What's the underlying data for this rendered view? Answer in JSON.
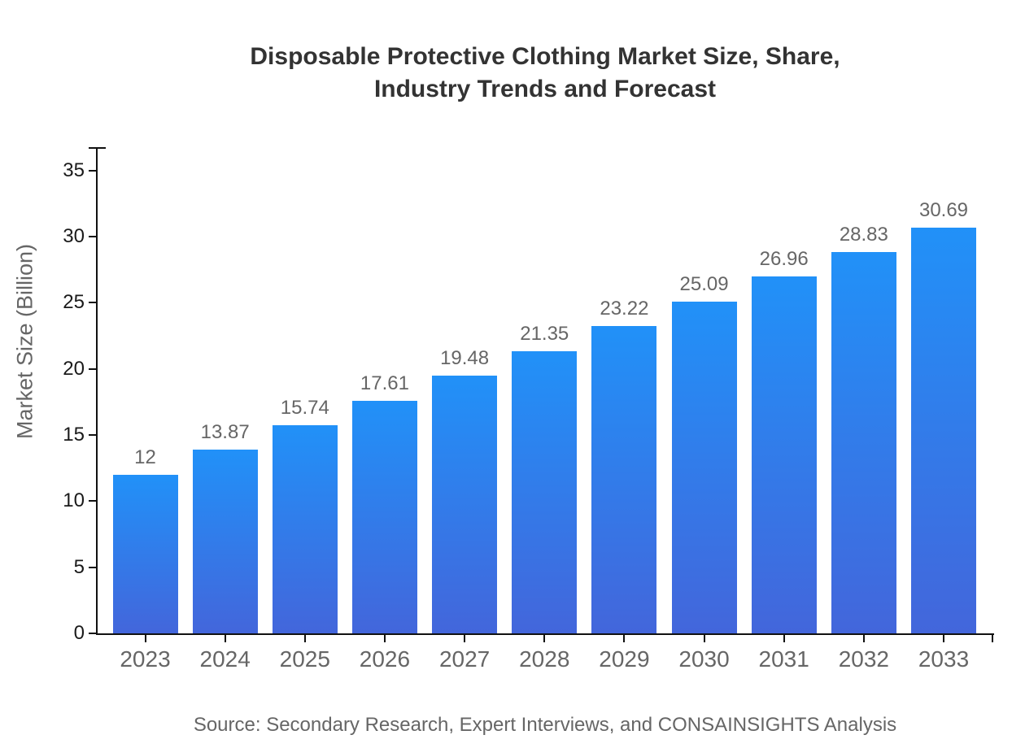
{
  "chart_data": {
    "type": "bar",
    "title": "Disposable Protective Clothing Market Size, Share, Industry Trends and Forecast",
    "title_lines": [
      "Disposable Protective Clothing Market Size, Share,",
      "Industry Trends and Forecast"
    ],
    "xlabel": "",
    "ylabel": "Market Size (Billion)",
    "categories": [
      "2023",
      "2024",
      "2025",
      "2026",
      "2027",
      "2028",
      "2029",
      "2030",
      "2031",
      "2032",
      "2033"
    ],
    "values": [
      12,
      13.87,
      15.74,
      17.61,
      19.48,
      21.35,
      23.22,
      25.09,
      26.96,
      28.83,
      30.69
    ],
    "value_labels": [
      "12",
      "13.87",
      "15.74",
      "17.61",
      "19.48",
      "21.35",
      "23.22",
      "25.09",
      "26.96",
      "28.83",
      "30.69"
    ],
    "yticks": [
      0,
      5,
      10,
      15,
      20,
      25,
      30,
      35
    ],
    "ylim": [
      0,
      36.7
    ],
    "grid": false,
    "legend": "none",
    "bar_gradient_top": "#2191F8",
    "bar_gradient_bottom": "#4366DB"
  },
  "footer": {
    "source_text": "Source: Secondary Research, Expert Interviews, and CONSAINSIGHTS Analysis"
  },
  "colors": {
    "background": "#ffffff",
    "title": "#333333",
    "axis": "#111111",
    "ytick_label": "#1a1a1a",
    "xtick_label": "#666666",
    "value_label": "#666666",
    "axis_title": "#666666",
    "source": "#666666"
  }
}
